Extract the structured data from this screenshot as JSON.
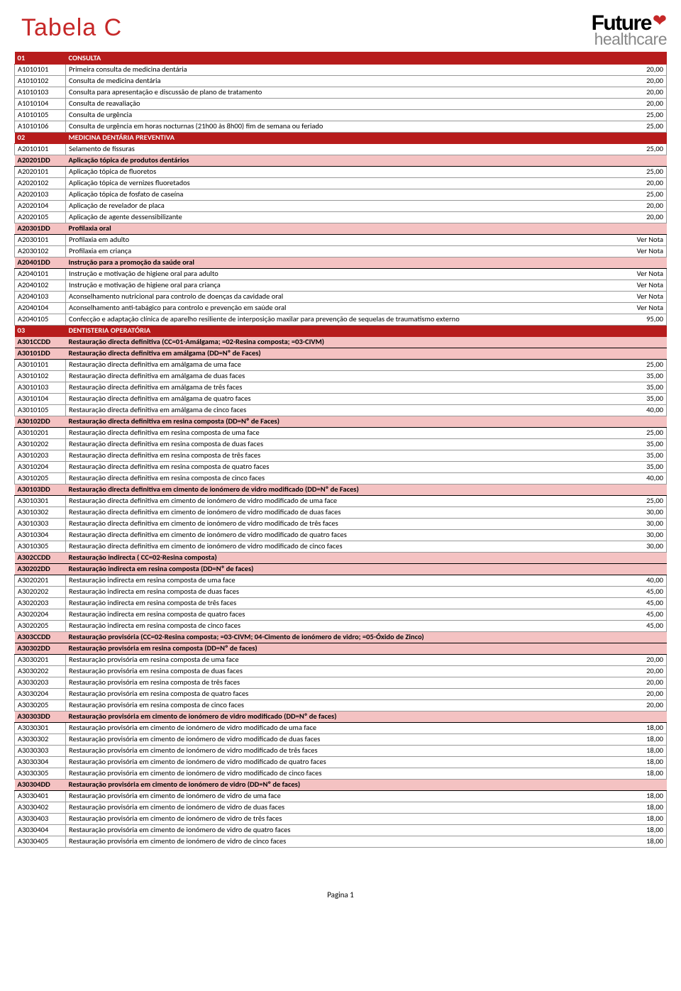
{
  "header": {
    "title": "Tabela C",
    "logo_line1": "Future",
    "logo_line2": "healthcare"
  },
  "footer": {
    "page": "Pagina 1"
  },
  "rows": [
    {
      "type": "section",
      "code": "01",
      "desc": "CONSULTA"
    },
    {
      "type": "normal",
      "code": "A1010101",
      "desc": "Primeira consulta de medicina dentária",
      "price": "20,00"
    },
    {
      "type": "normal",
      "code": "A1010102",
      "desc": "Consulta de medicina dentária",
      "price": "20,00"
    },
    {
      "type": "normal",
      "code": "A1010103",
      "desc": "Consulta para apresentação e discussão de plano de tratamento",
      "price": "20,00"
    },
    {
      "type": "normal",
      "code": "A1010104",
      "desc": "Consulta de reavaliação",
      "price": "20,00"
    },
    {
      "type": "normal",
      "code": "A1010105",
      "desc": "Consulta de urgência",
      "price": "25,00"
    },
    {
      "type": "normal",
      "code": "A1010106",
      "desc": "Consulta de urgência em horas nocturnas (21h00 às 8h00) fim de semana ou feriado",
      "price": "25,00"
    },
    {
      "type": "section",
      "code": "02",
      "desc": "MEDICINA DENTÁRIA PREVENTIVA"
    },
    {
      "type": "normal",
      "code": "A2010101",
      "desc": "Selamento de fissuras",
      "price": "25,00"
    },
    {
      "type": "subheader",
      "code": "A20201DD",
      "desc": "Aplicação tópica de produtos dentários"
    },
    {
      "type": "normal",
      "code": "A2020101",
      "desc": "Aplicação tópica de fluoretos",
      "price": "25,00"
    },
    {
      "type": "normal",
      "code": "A2020102",
      "desc": "Aplicação tópica de vernizes fluoretados",
      "price": "20,00"
    },
    {
      "type": "normal",
      "code": "A2020103",
      "desc": "Aplicação tópica de fosfato de caseína",
      "price": "25,00"
    },
    {
      "type": "normal",
      "code": "A2020104",
      "desc": "Aplicação de revelador de placa",
      "price": "20,00"
    },
    {
      "type": "normal",
      "code": "A2020105",
      "desc": "Aplicação de agente dessensibilizante",
      "price": "20,00"
    },
    {
      "type": "subheader",
      "code": "A20301DD",
      "desc": "Profilaxia oral"
    },
    {
      "type": "normal",
      "code": "A2030101",
      "desc": "Profilaxia em adulto",
      "price": "Ver Nota"
    },
    {
      "type": "normal",
      "code": "A2030102",
      "desc": "Profilaxia em criança",
      "price": "Ver Nota"
    },
    {
      "type": "subheader",
      "code": "A20401DD",
      "desc": "Instrução para a promoção da saúde oral"
    },
    {
      "type": "normal",
      "code": "A2040101",
      "desc": "Instrução e motivação de higiene oral para adulto",
      "price": "Ver Nota"
    },
    {
      "type": "normal",
      "code": "A2040102",
      "desc": "Instrução e motivação de higiene oral para criança",
      "price": "Ver Nota"
    },
    {
      "type": "normal",
      "code": "A2040103",
      "desc": "Aconselhamento nutricional para controlo de doenças da cavidade oral",
      "price": "Ver Nota"
    },
    {
      "type": "normal",
      "code": "A2040104",
      "desc": "Aconselhamento anti-tabágico para controlo e prevenção em saúde oral",
      "price": "Ver Nota"
    },
    {
      "type": "normal",
      "code": "A2040105",
      "desc": "Confecção e adaptação clínica de aparelho resiliente de interposição maxilar para prevenção de sequelas de traumatismo externo",
      "price": "95,00"
    },
    {
      "type": "section",
      "code": "03",
      "desc": "DENTISTERIA OPERATÓRIA"
    },
    {
      "type": "subheader",
      "code": "A301CCDD",
      "desc": "Restauração directa definitiva (CC=01-Amálgama; =02-Resina composta; =03-CIVM)"
    },
    {
      "type": "subheader",
      "code": "A30101DD",
      "desc": "Restauração directa definitiva em amálgama (DD=Nº de Faces)"
    },
    {
      "type": "normal",
      "code": "A3010101",
      "desc": "Restauração directa definitiva em amálgama de uma face",
      "price": "25,00"
    },
    {
      "type": "normal",
      "code": "A3010102",
      "desc": "Restauração directa definitiva em amálgama de duas faces",
      "price": "35,00"
    },
    {
      "type": "normal",
      "code": "A3010103",
      "desc": "Restauração directa definitiva em amálgama de três faces",
      "price": "35,00"
    },
    {
      "type": "normal",
      "code": "A3010104",
      "desc": "Restauração directa definitiva em amálgama de quatro faces",
      "price": "35,00"
    },
    {
      "type": "normal",
      "code": "A3010105",
      "desc": "Restauração directa definitiva em amálgama de cinco faces",
      "price": "40,00"
    },
    {
      "type": "subheader",
      "code": "A30102DD",
      "desc": "Restauração directa definitiva em resina composta (DD=Nº de Faces)"
    },
    {
      "type": "normal",
      "code": "A3010201",
      "desc": "Restauração directa definitiva em resina composta de uma face",
      "price": "25,00"
    },
    {
      "type": "normal",
      "code": "A3010202",
      "desc": "Restauração directa definitiva em resina composta de duas faces",
      "price": "35,00"
    },
    {
      "type": "normal",
      "code": "A3010203",
      "desc": "Restauração directa definitiva em resina composta de três faces",
      "price": "35,00"
    },
    {
      "type": "normal",
      "code": "A3010204",
      "desc": "Restauração directa definitiva em resina composta de quatro faces",
      "price": "35,00"
    },
    {
      "type": "normal",
      "code": "A3010205",
      "desc": "Restauração directa definitiva em resina composta de cinco faces",
      "price": "40,00"
    },
    {
      "type": "subheader",
      "code": "A30103DD",
      "desc": "Restauração directa definitiva em cimento de ionómero de vidro modificado (DD=Nº de Faces)"
    },
    {
      "type": "normal",
      "code": "A3010301",
      "desc": "Restauração directa definitiva em cimento de ionómero de vidro modificado de uma face",
      "price": "25,00"
    },
    {
      "type": "normal",
      "code": "A3010302",
      "desc": "Restauração directa definitiva em cimento de ionómero de vidro modificado de duas faces",
      "price": "30,00"
    },
    {
      "type": "normal",
      "code": "A3010303",
      "desc": "Restauração directa definitiva em cimento de ionómero de vidro modificado de três faces",
      "price": "30,00"
    },
    {
      "type": "normal",
      "code": "A3010304",
      "desc": "Restauração directa definitiva em cimento de ionómero de vidro modificado de quatro faces",
      "price": "30,00"
    },
    {
      "type": "normal",
      "code": "A3010305",
      "desc": "Restauração directa definitiva em cimento de ionómero de vidro modificado de cinco faces",
      "price": "30,00"
    },
    {
      "type": "subheader",
      "code": "A302CCDD",
      "desc": "Restauração indirecta ( CC=02-Resina composta)"
    },
    {
      "type": "subheader",
      "code": "A30202DD",
      "desc": "Restauração indirecta em resina composta (DD=Nº de faces)"
    },
    {
      "type": "normal",
      "code": "A3020201",
      "desc": "Restauração indirecta em resina composta de uma face",
      "price": "40,00"
    },
    {
      "type": "normal",
      "code": "A3020202",
      "desc": "Restauração indirecta em resina composta de duas faces",
      "price": "45,00"
    },
    {
      "type": "normal",
      "code": "A3020203",
      "desc": "Restauração indirecta em resina composta de três faces",
      "price": "45,00"
    },
    {
      "type": "normal",
      "code": "A3020204",
      "desc": "Restauração indirecta em resina composta de quatro faces",
      "price": "45,00"
    },
    {
      "type": "normal",
      "code": "A3020205",
      "desc": "Restauração indirecta em resina composta de cinco faces",
      "price": "45,00"
    },
    {
      "type": "subheader",
      "code": "A303CCDD",
      "desc": "Restauração provisória (CC=02-Resina composta; =03-CIVM; 04-Cimento de ionómero de vidro; =05-Óxido de Zinco)"
    },
    {
      "type": "subheader",
      "code": "A30302DD",
      "desc": "Restauração provisória em resina composta (DD=Nº de faces)"
    },
    {
      "type": "normal",
      "code": "A3030201",
      "desc": "Restauração provisória em resina composta de uma face",
      "price": "20,00"
    },
    {
      "type": "normal",
      "code": "A3030202",
      "desc": "Restauração provisória em resina composta de duas faces",
      "price": "20,00"
    },
    {
      "type": "normal",
      "code": "A3030203",
      "desc": "Restauração provisória em resina composta de três faces",
      "price": "20,00"
    },
    {
      "type": "normal",
      "code": "A3030204",
      "desc": "Restauração provisória em resina composta de quatro faces",
      "price": "20,00"
    },
    {
      "type": "normal",
      "code": "A3030205",
      "desc": "Restauração provisória em resina composta de cinco faces",
      "price": "20,00"
    },
    {
      "type": "subheader",
      "code": "A30303DD",
      "desc": "Restauração provisória em cimento de ionómero de vidro modificado (DD=Nº de faces)"
    },
    {
      "type": "normal",
      "code": "A3030301",
      "desc": "Restauração provisória em cimento de ionómero de vidro modificado de uma face",
      "price": "18,00"
    },
    {
      "type": "normal",
      "code": "A3030302",
      "desc": "Restauração provisória em cimento de ionómero de vidro modificado de duas faces",
      "price": "18,00"
    },
    {
      "type": "normal",
      "code": "A3030303",
      "desc": "Restauração provisória em cimento de ionómero de vidro modificado de três faces",
      "price": "18,00"
    },
    {
      "type": "normal",
      "code": "A3030304",
      "desc": "Restauração provisória em cimento de ionómero de vidro modificado de quatro faces",
      "price": "18,00"
    },
    {
      "type": "normal",
      "code": "A3030305",
      "desc": "Restauração provisória em cimento de ionómero de vidro modificado de cinco faces",
      "price": "18,00"
    },
    {
      "type": "subheader",
      "code": "A30304DD",
      "desc": "Restauração provisória em cimento de ionómero de vidro (DD=Nº de faces)"
    },
    {
      "type": "normal",
      "code": "A3030401",
      "desc": "Restauração provisória em cimento de ionómero de vidro de uma face",
      "price": "18,00"
    },
    {
      "type": "normal",
      "code": "A3030402",
      "desc": "Restauração provisória em cimento de ionómero de vidro de duas faces",
      "price": "18,00"
    },
    {
      "type": "normal",
      "code": "A3030403",
      "desc": "Restauração provisória em cimento de ionómero de vidro de três faces",
      "price": "18,00"
    },
    {
      "type": "normal",
      "code": "A3030404",
      "desc": "Restauração provisória em cimento de ionómero de vidro de quatro faces",
      "price": "18,00"
    },
    {
      "type": "normal",
      "code": "A3030405",
      "desc": "Restauração provisória em cimento de ionómero de vidro de cinco faces",
      "price": "18,00"
    }
  ]
}
